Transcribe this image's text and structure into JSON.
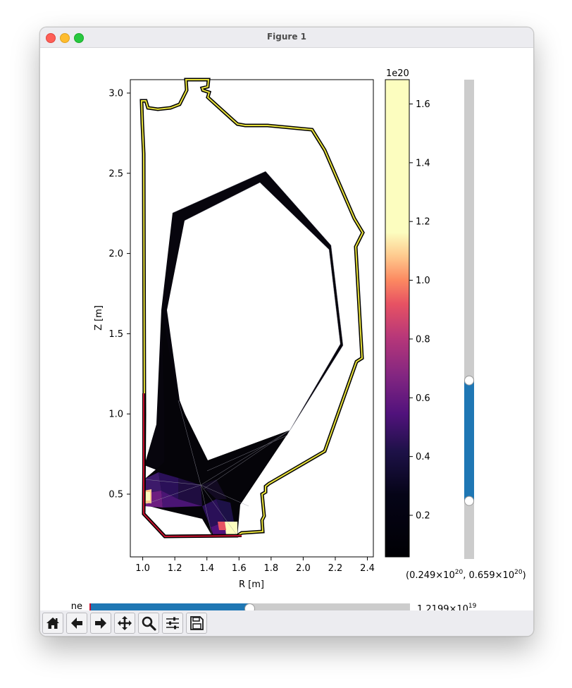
{
  "window": {
    "title": "Figure 1"
  },
  "plot": {
    "xlabel": "R [m]",
    "ylabel": "Z [m]",
    "xticks": [
      "1.0",
      "1.2",
      "1.4",
      "1.6",
      "1.8",
      "2.0",
      "2.2",
      "2.4"
    ],
    "yticks": [
      "0.5",
      "1.0",
      "1.5",
      "2.0",
      "2.5",
      "3.0"
    ]
  },
  "colorbar": {
    "exponent": "1e20",
    "ticks": [
      "0.2",
      "0.4",
      "0.6",
      "0.8",
      "1.0",
      "1.2",
      "1.4",
      "1.6"
    ],
    "colormap": "magma"
  },
  "range_slider": {
    "label_open": "(0.249×10",
    "exp1": "20",
    "label_mid": ", 0.659×10",
    "exp2": "20",
    "label_close": ")",
    "low": 0.249,
    "high": 0.659,
    "accent": "#1f77b4"
  },
  "ne_slider": {
    "label": "ne",
    "value_mantissa": "1.2199×10",
    "value_exp": "19",
    "fraction": 0.5
  },
  "toolbar": {
    "home": "home-icon",
    "back": "back-arrow-icon",
    "forward": "forward-arrow-icon",
    "pan": "pan-icon",
    "zoom": "zoom-icon",
    "configure": "configure-subplots-icon",
    "save": "save-icon"
  },
  "chart_data": {
    "type": "heatmap",
    "title": "",
    "xlabel": "R [m]",
    "ylabel": "Z [m]",
    "xlim": [
      0.93,
      2.45
    ],
    "ylim": [
      0.09,
      3.08
    ],
    "colorbar_range": [
      0.05,
      1.68
    ],
    "colorbar_scale": "1e20",
    "wall_outline_color": "#e8e13a",
    "wall_highlight_color": "#c8102e"
  }
}
